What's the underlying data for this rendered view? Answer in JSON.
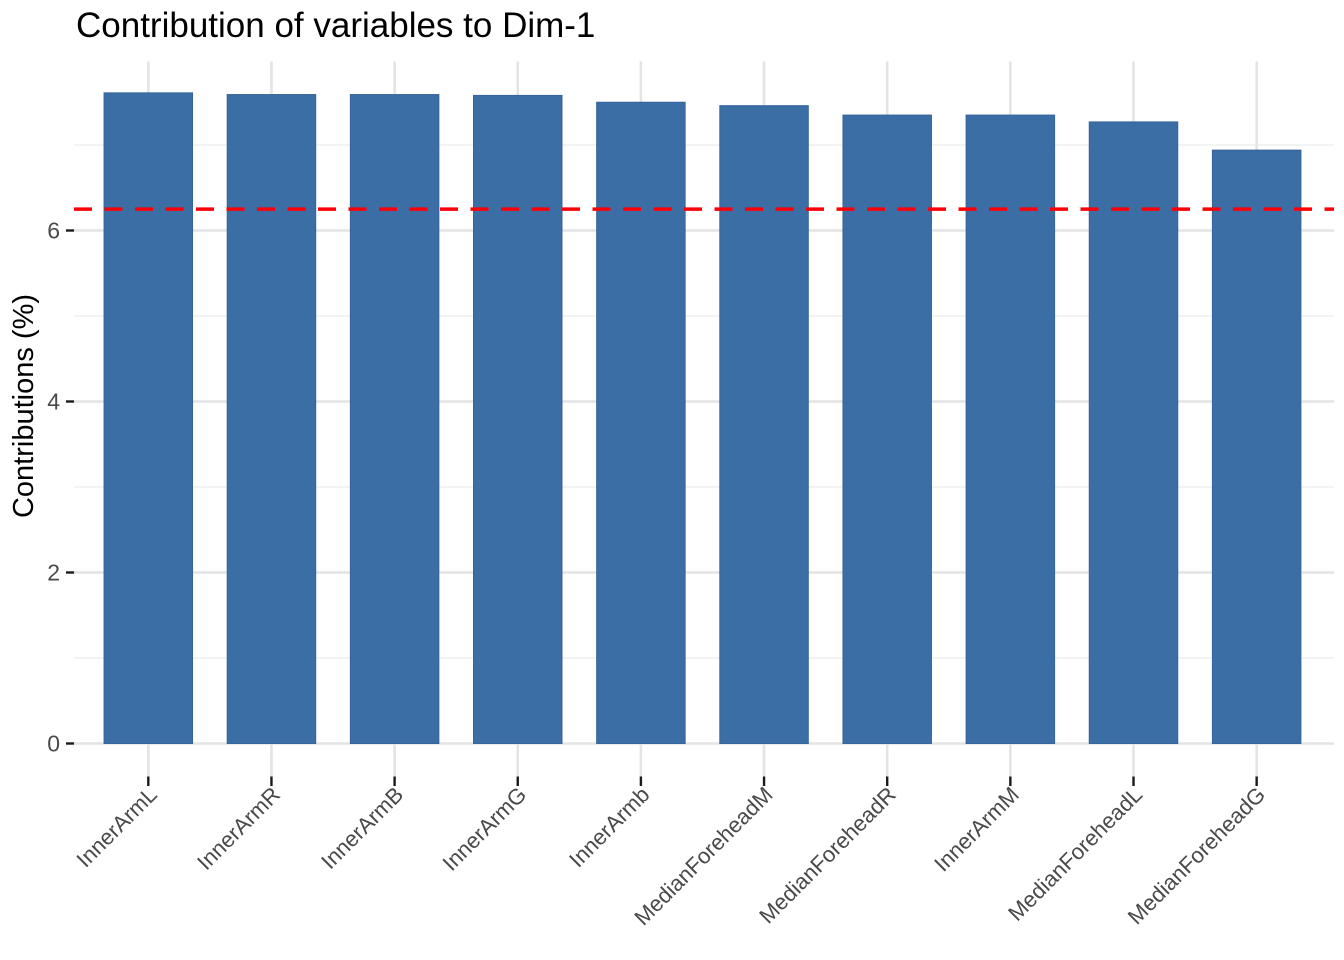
{
  "chart_data": {
    "type": "bar",
    "title": "Contribution of variables to Dim-1",
    "xlabel": "",
    "ylabel": "Contributions (%)",
    "categories": [
      "InnerArmL",
      "InnerArmR",
      "InnerArmB",
      "InnerArmG",
      "InnerArmb",
      "MedianForeheadM",
      "MedianForeheadR",
      "InnerArmM",
      "MedianForeheadL",
      "MedianForeheadG"
    ],
    "values": [
      7.61,
      7.59,
      7.59,
      7.58,
      7.5,
      7.46,
      7.35,
      7.35,
      7.27,
      6.94
    ],
    "y_ticks": [
      0,
      2,
      4,
      6
    ],
    "y_tick_labels": [
      "0",
      "2",
      "4",
      "6"
    ],
    "y_minor_ticks": [
      1,
      3,
      5,
      7
    ],
    "ylim": [
      -0.38,
      7.99
    ],
    "grid": true,
    "legend_position": "none",
    "bar_orientation": "vertical",
    "x_label_angle_deg": 45,
    "reference_line": {
      "value": 6.25,
      "style": "dashed"
    }
  },
  "colors": {
    "background": "#FFFFFF",
    "bar_fill": "#3A6EA5",
    "bar_edge": "#35659B",
    "reference_line": "#FB0007",
    "grid_major": "#E4E4E4",
    "grid_minor": "#EFEFEF",
    "tick_mark": "#1A1A1A",
    "axis_tick_text": "#4A4A4A",
    "axis_title_text": "#000000",
    "title_text": "#000000"
  }
}
